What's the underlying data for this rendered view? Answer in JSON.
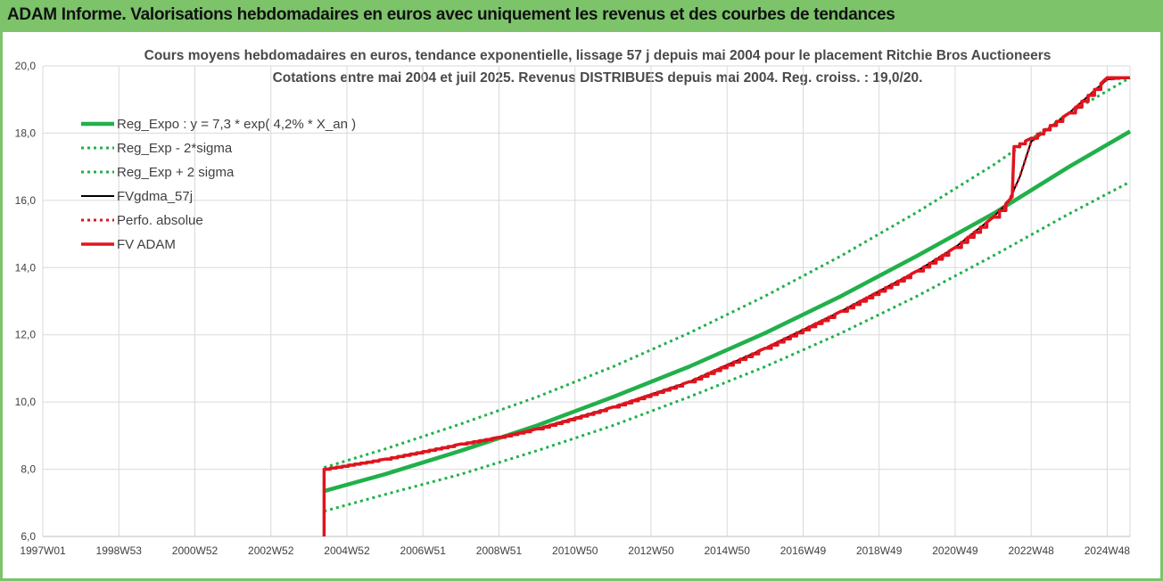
{
  "header": {
    "title": "ADAM Informe. Valorisations hebdomadaires en euros avec uniquement les revenus et des courbes de tendances"
  },
  "colors": {
    "header_bg": "#7cc36a",
    "trend": "#21b04b",
    "band": "#21b04b",
    "smooth": "#000000",
    "perf": "#e0141e",
    "fvadam": "#e0141e"
  },
  "chart_data": {
    "type": "line",
    "title": "Cours moyens hebdomadaires en euros, tendance exponentielle, lissage 57 j depuis mai 2004 pour le placement Ritchie Bros Auctioneers",
    "subtitle": "Cotations entre mai 2004 et juil 2025. Revenus DISTRIBUES depuis mai 2004. Reg. croiss. : 19,0/20.",
    "x_tick_labels": [
      "1997W01",
      "1998W53",
      "2000W52",
      "2002W52",
      "2004W52",
      "2006W51",
      "2008W51",
      "2010W50",
      "2012W50",
      "2014W50",
      "2016W49",
      "2018W49",
      "2020W49",
      "2022W48",
      "2024W48"
    ],
    "x_tick_years": [
      1997.0,
      1999.0,
      2001.0,
      2003.0,
      2005.0,
      2007.0,
      2009.0,
      2011.0,
      2013.0,
      2015.0,
      2017.0,
      2019.0,
      2021.0,
      2023.0,
      2025.0
    ],
    "xlim": [
      1997.0,
      2025.6
    ],
    "y_tick_labels": [
      "6,0",
      "8,0",
      "10,0",
      "12,0",
      "14,0",
      "16,0",
      "18,0",
      "20,0"
    ],
    "ylim": [
      6,
      20
    ],
    "grid": true,
    "legend_position": "top-left",
    "series": [
      {
        "name": "Reg_Expo : y = 7,3 * exp( 4,2% *  X_an )",
        "style": "solid-thick",
        "color": "#21b04b",
        "x": [
          2004.4,
          2006,
          2008,
          2010,
          2012,
          2014,
          2016,
          2018,
          2020,
          2022,
          2024,
          2025.6
        ],
        "y": [
          7.35,
          7.85,
          8.55,
          9.3,
          10.15,
          11.05,
          12.05,
          13.15,
          14.35,
          15.6,
          17.0,
          18.05
        ]
      },
      {
        "name": "Reg_Exp - 2*sigma",
        "style": "dotted",
        "color": "#21b04b",
        "x": [
          2004.4,
          2006,
          2008,
          2010,
          2012,
          2014,
          2016,
          2018,
          2020,
          2022,
          2024,
          2025.6
        ],
        "y": [
          6.75,
          7.25,
          7.85,
          8.55,
          9.3,
          10.15,
          11.05,
          12.05,
          13.15,
          14.35,
          15.6,
          16.55
        ]
      },
      {
        "name": "Reg_Exp + 2 sigma",
        "style": "dotted",
        "color": "#21b04b",
        "x": [
          2004.4,
          2006,
          2008,
          2010,
          2012,
          2014,
          2016,
          2018,
          2020,
          2022,
          2024,
          2025.6
        ],
        "y": [
          8.05,
          8.6,
          9.35,
          10.15,
          11.05,
          12.05,
          13.15,
          14.35,
          15.65,
          17.05,
          18.6,
          19.65
        ]
      },
      {
        "name": "FVgdma_57j",
        "style": "solid",
        "color": "#000000",
        "x": [
          2004.4,
          2006,
          2008,
          2009,
          2010,
          2012,
          2014,
          2016,
          2018,
          2020,
          2021,
          2022,
          2022.4,
          2022.7,
          2023,
          2024,
          2025.0,
          2025.6
        ],
        "y": [
          8.0,
          8.3,
          8.75,
          8.95,
          9.2,
          9.85,
          10.6,
          11.6,
          12.7,
          13.9,
          14.6,
          15.5,
          15.95,
          16.7,
          17.75,
          18.6,
          19.6,
          19.65
        ]
      },
      {
        "name": "Perfo. absolue",
        "style": "dotted",
        "color": "#e0141e",
        "x": [
          2004.4,
          2006,
          2008,
          2009,
          2010,
          2012,
          2014,
          2016,
          2018,
          2020,
          2021,
          2022,
          2022.4,
          2022.7,
          2023,
          2024,
          2025.0,
          2025.6
        ],
        "y": [
          8.0,
          8.3,
          8.75,
          8.95,
          9.2,
          9.85,
          10.6,
          11.6,
          12.7,
          13.9,
          14.6,
          15.5,
          15.95,
          16.7,
          17.75,
          18.6,
          19.6,
          19.65
        ]
      },
      {
        "name": "FV ADAM",
        "style": "solid-thick-stepped",
        "color": "#e0141e",
        "x": [
          2004.4,
          2004.4,
          2006,
          2008,
          2009,
          2010,
          2012,
          2014,
          2016,
          2018,
          2020,
          2021,
          2022,
          2022.5,
          2022.55,
          2023,
          2024,
          2025.0,
          2025.6
        ],
        "y": [
          6.0,
          8.0,
          8.3,
          8.75,
          8.95,
          9.2,
          9.85,
          10.6,
          11.6,
          12.7,
          13.9,
          14.6,
          15.5,
          16.1,
          17.6,
          17.85,
          18.6,
          19.65,
          19.65
        ]
      }
    ]
  }
}
